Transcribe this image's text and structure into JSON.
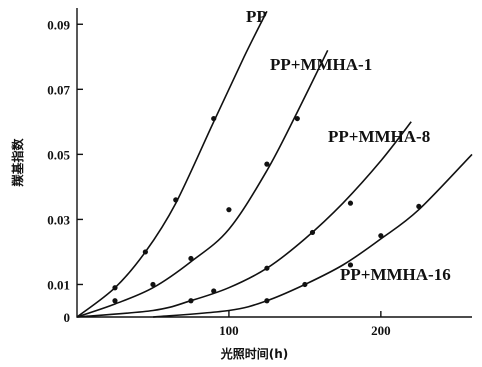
{
  "chart_data": {
    "type": "line",
    "xlabel": "光照时间(h)",
    "ylabel": "羰基指数",
    "xlim": [
      0,
      260
    ],
    "ylim": [
      0,
      0.095
    ],
    "x_ticks": [
      "100",
      "200"
    ],
    "x_tick_values": [
      100,
      200
    ],
    "y_ticks": [
      "0",
      "0.01",
      "0.03",
      "0.05",
      "0.07",
      "0.09"
    ],
    "y_tick_values": [
      0,
      0.01,
      0.03,
      0.05,
      0.07,
      0.09
    ],
    "series": [
      {
        "name": "PP",
        "x": [
          0,
          25,
          45,
          65,
          90,
          110,
          125
        ],
        "y": [
          0,
          0.009,
          0.02,
          0.035,
          0.06,
          0.08,
          0.094
        ],
        "markers": [
          [
            25,
            0.009
          ],
          [
            45,
            0.02
          ],
          [
            65,
            0.036
          ],
          [
            90,
            0.061
          ]
        ]
      },
      {
        "name": "PP+MMHA-1",
        "x": [
          0,
          25,
          50,
          75,
          100,
          125,
          145,
          165
        ],
        "y": [
          0,
          0.004,
          0.009,
          0.017,
          0.027,
          0.045,
          0.063,
          0.082
        ],
        "markers": [
          [
            25,
            0.005
          ],
          [
            50,
            0.01
          ],
          [
            75,
            0.018
          ],
          [
            100,
            0.033
          ],
          [
            125,
            0.047
          ],
          [
            145,
            0.061
          ]
        ]
      },
      {
        "name": "PP+MMHA-8",
        "x": [
          0,
          50,
          75,
          100,
          125,
          150,
          175,
          200,
          220
        ],
        "y": [
          0,
          0.002,
          0.005,
          0.009,
          0.015,
          0.024,
          0.035,
          0.048,
          0.06
        ],
        "markers": [
          [
            75,
            0.005
          ],
          [
            90,
            0.008
          ],
          [
            125,
            0.015
          ],
          [
            155,
            0.026
          ],
          [
            180,
            0.035
          ]
        ]
      },
      {
        "name": "PP+MMHA-16",
        "x": [
          50,
          100,
          125,
          150,
          175,
          200,
          225,
          260
        ],
        "y": [
          0,
          0.002,
          0.005,
          0.01,
          0.016,
          0.024,
          0.033,
          0.05
        ],
        "markers": [
          [
            125,
            0.005
          ],
          [
            150,
            0.01
          ],
          [
            180,
            0.016
          ],
          [
            200,
            0.025
          ],
          [
            225,
            0.034
          ]
        ]
      }
    ]
  }
}
